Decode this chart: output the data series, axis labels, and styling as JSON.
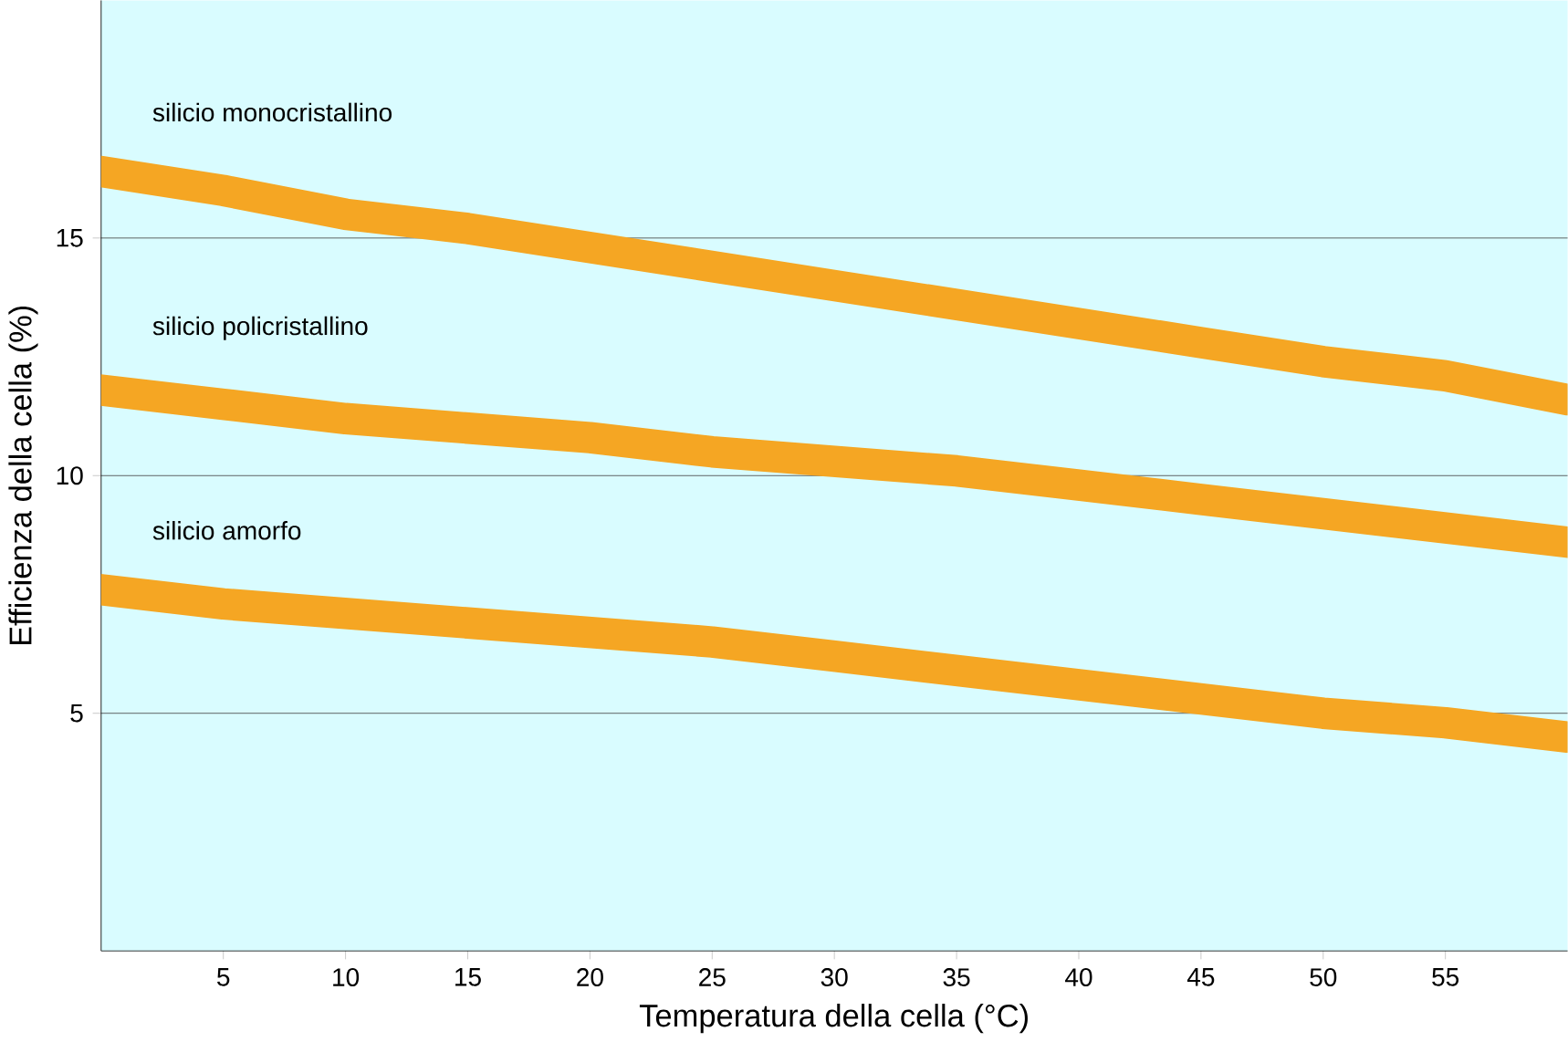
{
  "chart_data": {
    "type": "line",
    "xlabel": "Temperatura della cella (°C)",
    "ylabel": "Efficienza della cella (%)",
    "x": [
      0,
      5,
      10,
      15,
      20,
      25,
      30,
      35,
      40,
      45,
      50,
      55,
      60
    ],
    "series": [
      {
        "name": "silicio monocristallino",
        "color": "#f5a623",
        "values": [
          16.4,
          16.0,
          15.5,
          15.2,
          14.8,
          14.4,
          14.0,
          13.6,
          13.2,
          12.8,
          12.4,
          12.1,
          11.6
        ]
      },
      {
        "name": "silicio policristallino",
        "color": "#f5a623",
        "values": [
          11.8,
          11.5,
          11.2,
          11.0,
          10.8,
          10.5,
          10.3,
          10.1,
          9.8,
          9.5,
          9.2,
          8.9,
          8.6
        ]
      },
      {
        "name": "silicio amorfo",
        "color": "#f5a623",
        "values": [
          7.6,
          7.3,
          7.1,
          6.9,
          6.7,
          6.5,
          6.2,
          5.9,
          5.6,
          5.3,
          5.0,
          4.8,
          4.5
        ]
      }
    ],
    "xlim": [
      0,
      60
    ],
    "ylim": [
      0,
      20
    ],
    "xticks": [
      5,
      10,
      15,
      20,
      25,
      30,
      35,
      40,
      45,
      50,
      55
    ],
    "yticks": [
      5,
      10,
      15
    ],
    "grid": "y",
    "legend": false,
    "marker": "none",
    "line_style": "solid"
  }
}
